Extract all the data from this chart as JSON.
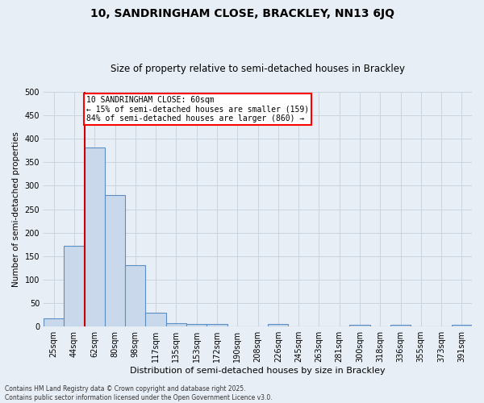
{
  "title_line1": "10, SANDRINGHAM CLOSE, BRACKLEY, NN13 6JQ",
  "title_line2": "Size of property relative to semi-detached houses in Brackley",
  "xlabel": "Distribution of semi-detached houses by size in Brackley",
  "ylabel": "Number of semi-detached properties",
  "categories": [
    "25sqm",
    "44sqm",
    "62sqm",
    "80sqm",
    "98sqm",
    "117sqm",
    "135sqm",
    "153sqm",
    "172sqm",
    "190sqm",
    "208sqm",
    "226sqm",
    "245sqm",
    "263sqm",
    "281sqm",
    "300sqm",
    "318sqm",
    "336sqm",
    "355sqm",
    "373sqm",
    "391sqm"
  ],
  "values": [
    17,
    172,
    382,
    281,
    131,
    29,
    8,
    6,
    6,
    0,
    0,
    6,
    0,
    0,
    0,
    4,
    0,
    4,
    0,
    0,
    4
  ],
  "bar_color": "#c9d9eb",
  "bar_edge_color": "#5b8ec4",
  "red_line_index": 2,
  "annotation_text": "10 SANDRINGHAM CLOSE: 60sqm\n← 15% of semi-detached houses are smaller (159)\n84% of semi-detached houses are larger (860) →",
  "annotation_box_color": "white",
  "annotation_box_edge_color": "red",
  "red_line_color": "#cc0000",
  "footnote": "Contains HM Land Registry data © Crown copyright and database right 2025.\nContains public sector information licensed under the Open Government Licence v3.0.",
  "ylim": [
    0,
    500
  ],
  "yticks": [
    0,
    50,
    100,
    150,
    200,
    250,
    300,
    350,
    400,
    450,
    500
  ],
  "grid_color": "#c8d4e0",
  "bg_color": "#e8eef5",
  "title1_fontsize": 10,
  "title2_fontsize": 8.5,
  "ylabel_fontsize": 7.5,
  "xlabel_fontsize": 8,
  "tick_fontsize": 7,
  "footnote_fontsize": 5.5
}
